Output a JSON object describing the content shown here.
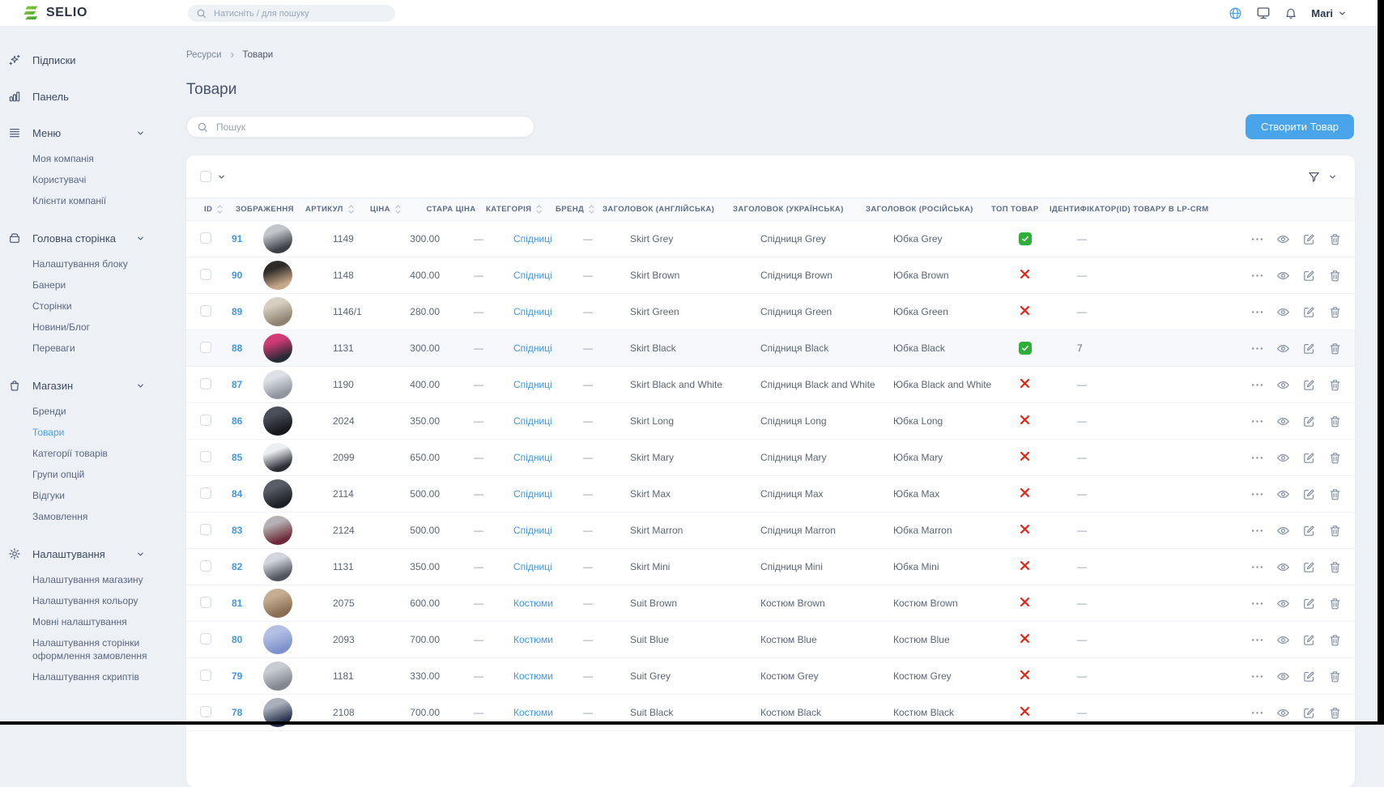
{
  "topbar": {
    "brand": "SELIO",
    "search_placeholder": "Натисніть / для пошуку",
    "user_name": "Mari",
    "icons": [
      "globe",
      "monitor",
      "bell"
    ]
  },
  "sidebar": {
    "sections": [
      {
        "key": "subscriptions",
        "icon": "sparkles",
        "label": "Підписки",
        "children": []
      },
      {
        "key": "dashboard",
        "icon": "bar-chart",
        "label": "Панель",
        "children": []
      },
      {
        "key": "menu",
        "icon": "hamburger",
        "label": "Меню",
        "expanded": true,
        "children": [
          "Моя компанія",
          "Користувачі",
          "Клієнти компанії"
        ]
      },
      {
        "key": "homepage",
        "icon": "box",
        "label": "Головна сторінка",
        "expanded": true,
        "children": [
          "Налаштування блоку",
          "Банери",
          "Сторінки",
          "Новини/Блог",
          "Переваги"
        ]
      },
      {
        "key": "shop",
        "icon": "bag",
        "label": "Магазин",
        "expanded": true,
        "active_child": "Товари",
        "children": [
          "Бренди",
          "Товари",
          "Категорії товарів",
          "Групи опцій",
          "Відгуки",
          "Замовлення"
        ]
      },
      {
        "key": "settings",
        "icon": "gear",
        "label": "Налаштування",
        "expanded": true,
        "children": [
          "Налаштування магазину",
          "Налаштування кольору",
          "Мовні налаштування",
          "Налаштування сторінки оформлення замовлення",
          "Налаштування скриптів"
        ]
      }
    ]
  },
  "breadcrumb": {
    "items": [
      "Ресурси",
      "Товари"
    ]
  },
  "page": {
    "title": "Товари",
    "search_placeholder": "Пошук",
    "create_button": "Створити Товар"
  },
  "table": {
    "columns": [
      {
        "key": "id",
        "label": "ID",
        "sortable": true
      },
      {
        "key": "image",
        "label": "ЗОБРАЖЕННЯ",
        "sortable": false
      },
      {
        "key": "sku",
        "label": "АРТИКУЛ",
        "sortable": true
      },
      {
        "key": "price",
        "label": "ЦІНА",
        "sortable": true
      },
      {
        "key": "old",
        "label": "СТАРА ЦІНА",
        "sortable": false
      },
      {
        "key": "cat",
        "label": "КАТЕГОРІЯ",
        "sortable": true
      },
      {
        "key": "brand",
        "label": "БРЕНД",
        "sortable": true
      },
      {
        "key": "en",
        "label": "ЗАГОЛОВОК (АНГЛІЙСЬКА)",
        "sortable": false
      },
      {
        "key": "uk",
        "label": "ЗАГОЛОВОК (УКРАЇНСЬКА)",
        "sortable": false
      },
      {
        "key": "ru",
        "label": "ЗАГОЛОВОК (РОСІЙСЬКА)",
        "sortable": false
      },
      {
        "key": "top",
        "label": "ТОП ТОВАР",
        "sortable": false
      },
      {
        "key": "lp",
        "label": "ІДЕНТИФІКАТОР(ID) ТОВАРУ В LP-CRM",
        "sortable": false
      }
    ],
    "row_actions": [
      {
        "key": "more",
        "icon": "more"
      },
      {
        "key": "view",
        "icon": "eye"
      },
      {
        "key": "edit",
        "icon": "edit"
      },
      {
        "key": "delete",
        "icon": "trash"
      }
    ],
    "rows": [
      {
        "id": "91",
        "sku": "1149",
        "price": "300.00",
        "old_price": "—",
        "category": "Спідниці",
        "brand": "—",
        "title_en": "Skirt Grey",
        "title_uk": "Спідниця Grey",
        "title_ru": "Юбка Grey",
        "top": true,
        "lp_crm_id": "—",
        "highlighted": false,
        "image_colors": [
          "#c2c6cb",
          "#3c3f45"
        ]
      },
      {
        "id": "90",
        "sku": "1148",
        "price": "400.00",
        "old_price": "—",
        "category": "Спідниці",
        "brand": "—",
        "title_en": "Skirt Brown",
        "title_uk": "Спідниця Brown",
        "title_ru": "Юбка Brown",
        "top": false,
        "lp_crm_id": "—",
        "highlighted": false,
        "image_colors": [
          "#2f2b28",
          "#c8a88b"
        ]
      },
      {
        "id": "89",
        "sku": "1146/1",
        "price": "280.00",
        "old_price": "—",
        "category": "Спідниці",
        "brand": "—",
        "title_en": "Skirt Green",
        "title_uk": "Спідниця Green",
        "title_ru": "Юбка Green",
        "top": false,
        "lp_crm_id": "—",
        "highlighted": false,
        "image_colors": [
          "#d6cec1",
          "#8f8270"
        ]
      },
      {
        "id": "88",
        "sku": "1131",
        "price": "300.00",
        "old_price": "—",
        "category": "Спідниці",
        "brand": "—",
        "title_en": "Skirt Black",
        "title_uk": "Спідниця Black",
        "title_ru": "Юбка Black",
        "top": true,
        "lp_crm_id": "7",
        "highlighted": true,
        "image_colors": [
          "#d23a74",
          "#262b36"
        ]
      },
      {
        "id": "87",
        "sku": "1190",
        "price": "400.00",
        "old_price": "—",
        "category": "Спідниці",
        "brand": "—",
        "title_en": "Skirt Black and White",
        "title_uk": "Спідниця Black and White",
        "title_ru": "Юбка Black and White",
        "top": false,
        "lp_crm_id": "—",
        "highlighted": false,
        "image_colors": [
          "#dde1e6",
          "#8e959e"
        ]
      },
      {
        "id": "86",
        "sku": "2024",
        "price": "350.00",
        "old_price": "—",
        "category": "Спідниці",
        "brand": "—",
        "title_en": "Skirt Long",
        "title_uk": "Спідниця Long",
        "title_ru": "Юбка Long",
        "top": false,
        "lp_crm_id": "—",
        "highlighted": false,
        "image_colors": [
          "#4a4e58",
          "#17181d"
        ]
      },
      {
        "id": "85",
        "sku": "2099",
        "price": "650.00",
        "old_price": "—",
        "category": "Спідниці",
        "brand": "—",
        "title_en": "Skirt Mary",
        "title_uk": "Спідниця Mary",
        "title_ru": "Юбка Mary",
        "top": false,
        "lp_crm_id": "—",
        "highlighted": false,
        "image_colors": [
          "#eceef1",
          "#2b2e35"
        ]
      },
      {
        "id": "84",
        "sku": "2114",
        "price": "500.00",
        "old_price": "—",
        "category": "Спідниці",
        "brand": "—",
        "title_en": "Skirt Max",
        "title_uk": "Спідниця Max",
        "title_ru": "Юбка Max",
        "top": false,
        "lp_crm_id": "—",
        "highlighted": false,
        "image_colors": [
          "#585d66",
          "#1e2026"
        ]
      },
      {
        "id": "83",
        "sku": "2124",
        "price": "500.00",
        "old_price": "—",
        "category": "Спідниці",
        "brand": "—",
        "title_en": "Skirt Marron",
        "title_uk": "Спідниця Marron",
        "title_ru": "Юбка Marron",
        "top": false,
        "lp_crm_id": "—",
        "highlighted": false,
        "image_colors": [
          "#b5b1b4",
          "#6e2a38"
        ]
      },
      {
        "id": "82",
        "sku": "1131",
        "price": "350.00",
        "old_price": "—",
        "category": "Спідниці",
        "brand": "—",
        "title_en": "Skirt Mini",
        "title_uk": "Спідниця Mini",
        "title_ru": "Юбка Mini",
        "top": false,
        "lp_crm_id": "—",
        "highlighted": false,
        "image_colors": [
          "#d3d7dd",
          "#50545e"
        ]
      },
      {
        "id": "81",
        "sku": "2075",
        "price": "600.00",
        "old_price": "—",
        "category": "Костюми",
        "brand": "—",
        "title_en": "Suit Brown",
        "title_uk": "Костюм Brown",
        "title_ru": "Костюм Brown",
        "top": false,
        "lp_crm_id": "—",
        "highlighted": false,
        "image_colors": [
          "#c5ad92",
          "#8a6e53"
        ]
      },
      {
        "id": "80",
        "sku": "2093",
        "price": "700.00",
        "old_price": "—",
        "category": "Костюми",
        "brand": "—",
        "title_en": "Suit Blue",
        "title_uk": "Костюм Blue",
        "title_ru": "Костюм Blue",
        "top": false,
        "lp_crm_id": "—",
        "highlighted": false,
        "image_colors": [
          "#b3c0e4",
          "#7f92cc"
        ]
      },
      {
        "id": "79",
        "sku": "1181",
        "price": "330.00",
        "old_price": "—",
        "category": "Костюми",
        "brand": "—",
        "title_en": "Suit Grey",
        "title_uk": "Костюм Grey",
        "title_ru": "Костюм Grey",
        "top": false,
        "lp_crm_id": "—",
        "highlighted": false,
        "image_colors": [
          "#c8ccd2",
          "#81878f"
        ]
      },
      {
        "id": "78",
        "sku": "2108",
        "price": "700.00",
        "old_price": "—",
        "category": "Костюми",
        "brand": "—",
        "title_en": "Suit Black",
        "title_uk": "Костюм Black",
        "title_ru": "Костюм Black",
        "top": false,
        "lp_crm_id": "—",
        "highlighted": false,
        "image_colors": [
          "#a8b0ba",
          "#232c49"
        ]
      }
    ]
  },
  "colors": {
    "accent": "#4aa4e9",
    "link": "#3f97e4",
    "success": "#2fae39",
    "danger": "#e02718",
    "background": "#edf0f5"
  }
}
